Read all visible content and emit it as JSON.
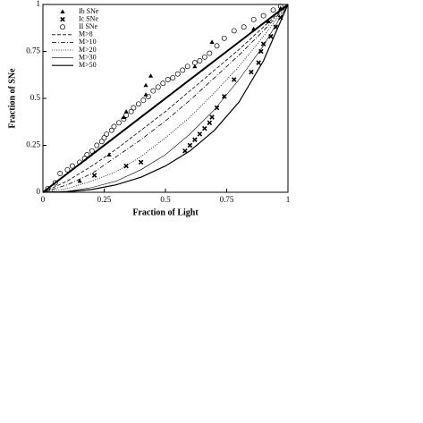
{
  "chart_data": {
    "type": "line",
    "x_label": "Fraction of Light",
    "y_label": "Fraction of SNe",
    "xlim": [
      0,
      1
    ],
    "ylim": [
      0,
      1
    ],
    "xticks": [
      0,
      0.25,
      0.5,
      0.75,
      1
    ],
    "yticks": [
      0,
      0.25,
      0.5,
      0.75,
      1
    ],
    "legend": "upper-left",
    "series": [
      {
        "name": "Ib SNe",
        "marker": "triangle",
        "color": "#000",
        "x": [
          0.15,
          0.27,
          0.33,
          0.34,
          0.42,
          0.42,
          0.44,
          0.62,
          0.69,
          0.86,
          0.92,
          0.97
        ],
        "values": [
          0.06,
          0.2,
          0.4,
          0.43,
          0.57,
          0.52,
          0.62,
          0.67,
          0.8,
          0.87,
          0.91,
          0.98
        ]
      },
      {
        "name": "Ic SNe",
        "marker": "cross",
        "color": "#000",
        "x": [
          0.21,
          0.34,
          0.4,
          0.58,
          0.6,
          0.62,
          0.64,
          0.66,
          0.68,
          0.69,
          0.71,
          0.74,
          0.78,
          0.85,
          0.88,
          0.89,
          0.9,
          0.93,
          0.95,
          0.97
        ],
        "values": [
          0.09,
          0.14,
          0.16,
          0.22,
          0.25,
          0.28,
          0.31,
          0.34,
          0.37,
          0.4,
          0.45,
          0.51,
          0.6,
          0.64,
          0.69,
          0.75,
          0.79,
          0.83,
          0.88,
          0.93
        ]
      },
      {
        "name": "II SNe",
        "marker": "circle",
        "color": "#000",
        "x": [
          0.02,
          0.05,
          0.07,
          0.1,
          0.12,
          0.15,
          0.17,
          0.18,
          0.2,
          0.22,
          0.24,
          0.25,
          0.26,
          0.28,
          0.29,
          0.31,
          0.33,
          0.34,
          0.36,
          0.37,
          0.39,
          0.41,
          0.43,
          0.45,
          0.47,
          0.49,
          0.51,
          0.53,
          0.55,
          0.57,
          0.59,
          0.62,
          0.64,
          0.66,
          0.68,
          0.71,
          0.74,
          0.78,
          0.82,
          0.86,
          0.9,
          0.94,
          0.97
        ],
        "values": [
          0.02,
          0.05,
          0.1,
          0.12,
          0.14,
          0.16,
          0.18,
          0.2,
          0.22,
          0.25,
          0.27,
          0.29,
          0.31,
          0.33,
          0.35,
          0.37,
          0.39,
          0.41,
          0.43,
          0.45,
          0.47,
          0.49,
          0.51,
          0.54,
          0.56,
          0.58,
          0.6,
          0.61,
          0.63,
          0.65,
          0.67,
          0.69,
          0.7,
          0.72,
          0.74,
          0.78,
          0.82,
          0.86,
          0.88,
          0.92,
          0.94,
          0.97,
          0.99
        ]
      },
      {
        "name": "M>8",
        "dash": "4 2",
        "width": 0.8,
        "color": "#000",
        "x": [
          0,
          0.1,
          0.2,
          0.3,
          0.4,
          0.5,
          0.6,
          0.7,
          0.8,
          0.9,
          1
        ],
        "values": [
          0,
          0.06,
          0.14,
          0.23,
          0.33,
          0.43,
          0.54,
          0.65,
          0.76,
          0.88,
          1
        ]
      },
      {
        "name": "M>10",
        "dash": "5 2 1 2",
        "width": 0.8,
        "color": "#000",
        "x": [
          0,
          0.1,
          0.2,
          0.3,
          0.4,
          0.5,
          0.6,
          0.7,
          0.8,
          0.9,
          1
        ],
        "values": [
          0,
          0.04,
          0.1,
          0.19,
          0.28,
          0.38,
          0.49,
          0.61,
          0.73,
          0.86,
          1
        ]
      },
      {
        "name": "M>20",
        "dash": "1 1.5",
        "width": 0.8,
        "color": "#000",
        "x": [
          0,
          0.1,
          0.2,
          0.3,
          0.4,
          0.5,
          0.6,
          0.7,
          0.8,
          0.9,
          1
        ],
        "values": [
          0,
          0.02,
          0.06,
          0.11,
          0.19,
          0.29,
          0.4,
          0.53,
          0.67,
          0.83,
          1
        ]
      },
      {
        "name": "M>30",
        "dash": "none",
        "width": 0.6,
        "color": "#000",
        "x": [
          0,
          0.1,
          0.2,
          0.3,
          0.4,
          0.5,
          0.6,
          0.7,
          0.8,
          0.9,
          1
        ],
        "values": [
          0,
          0.005,
          0.025,
          0.06,
          0.12,
          0.2,
          0.31,
          0.44,
          0.6,
          0.78,
          1
        ]
      },
      {
        "name": "M>50",
        "dash": "none",
        "width": 1.2,
        "color": "#000",
        "x": [
          0,
          0.1,
          0.2,
          0.3,
          0.4,
          0.5,
          0.6,
          0.7,
          0.8,
          0.9,
          1
        ],
        "values": [
          0,
          0.003,
          0.015,
          0.04,
          0.08,
          0.14,
          0.22,
          0.33,
          0.48,
          0.7,
          1
        ]
      }
    ]
  }
}
